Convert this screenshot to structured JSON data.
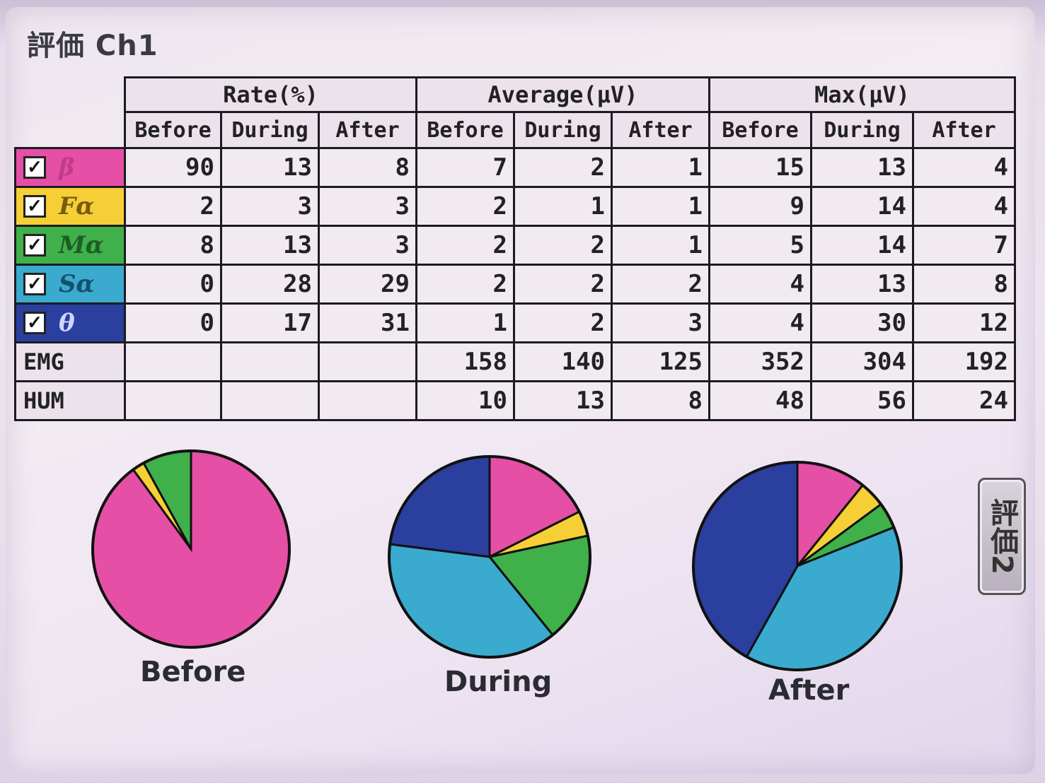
{
  "window": {
    "title": "評価 Ch1"
  },
  "table": {
    "groups": [
      "Rate(%)",
      "Average(μV)",
      "Max(μV)"
    ],
    "subheaders": [
      "Before",
      "During",
      "After"
    ],
    "rows": [
      {
        "label": "β",
        "checked": true,
        "color": "#e64fa6",
        "text_color": "#c03c8a",
        "values": [
          "90",
          "13",
          "8",
          "7",
          "2",
          "1",
          "15",
          "13",
          "4"
        ]
      },
      {
        "label": "Fα",
        "checked": true,
        "color": "#f5cf35",
        "text_color": "#7a5a10",
        "values": [
          "2",
          "3",
          "3",
          "2",
          "1",
          "1",
          "9",
          "14",
          "4"
        ]
      },
      {
        "label": "Mα",
        "checked": true,
        "color": "#3fb04a",
        "text_color": "#1d5e25",
        "values": [
          "8",
          "13",
          "3",
          "2",
          "2",
          "1",
          "5",
          "14",
          "7"
        ]
      },
      {
        "label": "Sα",
        "checked": true,
        "color": "#3aaacf",
        "text_color": "#14516a",
        "values": [
          "0",
          "28",
          "29",
          "2",
          "2",
          "2",
          "4",
          "13",
          "8"
        ]
      },
      {
        "label": "θ",
        "checked": true,
        "color": "#2a3f9e",
        "text_color": "#cfd6ff",
        "values": [
          "0",
          "17",
          "31",
          "1",
          "2",
          "3",
          "4",
          "30",
          "12"
        ]
      },
      {
        "label": "EMG",
        "checked": null,
        "color": "",
        "values": [
          "",
          "",
          "",
          "158",
          "140",
          "125",
          "352",
          "304",
          "192"
        ]
      },
      {
        "label": "HUM",
        "checked": null,
        "color": "",
        "values": [
          "",
          "",
          "",
          "10",
          "13",
          "8",
          "48",
          "56",
          "24"
        ]
      }
    ],
    "check_glyph": "✓"
  },
  "pies": [
    {
      "caption": "Before"
    },
    {
      "caption": "During"
    },
    {
      "caption": "After"
    }
  ],
  "chart_data": {
    "type": "pie",
    "categories": [
      "β",
      "Fα",
      "Mα",
      "Sα",
      "θ"
    ],
    "colors": [
      "#e64fa6",
      "#f5cf35",
      "#3fb04a",
      "#3aaacf",
      "#2a3f9e"
    ],
    "series": [
      {
        "name": "Before",
        "values": [
          90,
          2,
          8,
          0,
          0
        ]
      },
      {
        "name": "During",
        "values": [
          13,
          3,
          13,
          28,
          17
        ]
      },
      {
        "name": "After",
        "values": [
          8,
          3,
          3,
          29,
          31
        ]
      }
    ]
  },
  "eval2_button": {
    "label": "評価2"
  }
}
